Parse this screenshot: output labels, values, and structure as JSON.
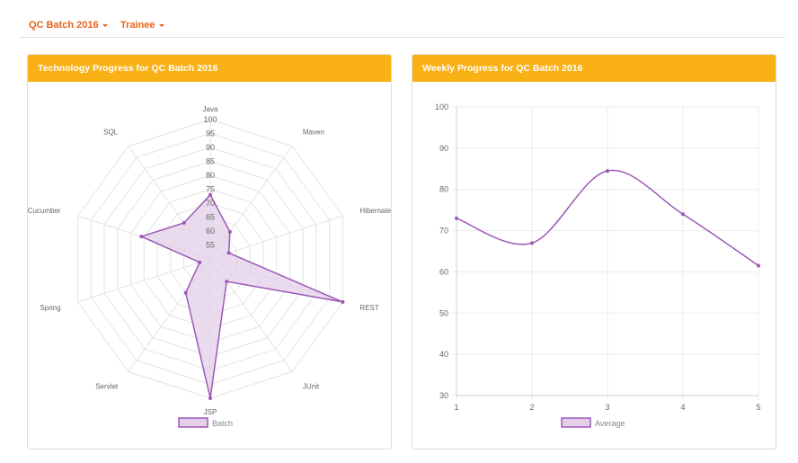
{
  "nav": {
    "batch_label": "QC Batch 2016",
    "trainee_label": "Trainee"
  },
  "colors": {
    "accent": "#e8641b",
    "panel_header": "#f9b115",
    "series_stroke": "#9b59b6",
    "series_fill": "#e3cfe8"
  },
  "panels": {
    "left_title": "Technology Progress for QC Batch 2016",
    "right_title": "Weekly Progress for QC Batch 2016"
  },
  "chart_data": [
    {
      "type": "radar",
      "title": "Technology Progress for QC Batch 2016",
      "categories": [
        "Java",
        "Maven",
        "Hibernate",
        "REST",
        "JUnit",
        "JSP",
        "Servlet",
        "Spring",
        "Cucumber",
        "SQL"
      ],
      "series": [
        {
          "name": "Batch",
          "values": [
            73,
            62,
            57,
            100,
            60,
            100,
            65,
            54,
            76,
            66
          ]
        }
      ],
      "r_range": [
        50,
        100
      ],
      "r_ticks": [
        55,
        60,
        65,
        70,
        75,
        80,
        85,
        90,
        95,
        100
      ],
      "legend": "bottom",
      "grid": true
    },
    {
      "type": "line",
      "title": "Weekly Progress for QC Batch 2016",
      "x": [
        1,
        2,
        3,
        4,
        5
      ],
      "series": [
        {
          "name": "Average",
          "values": [
            73,
            67,
            84.5,
            74,
            61.5
          ]
        }
      ],
      "ylim": [
        30,
        100
      ],
      "y_ticks": [
        30,
        40,
        50,
        60,
        70,
        80,
        90,
        100
      ],
      "x_ticks": [
        1,
        2,
        3,
        4,
        5
      ],
      "legend": "bottom",
      "grid": true
    }
  ]
}
